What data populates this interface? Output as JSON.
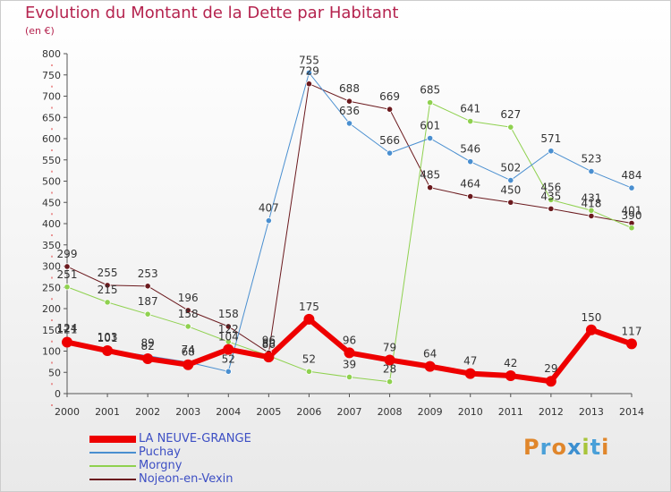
{
  "header": {
    "title": "Evolution du Montant de la Dette par Habitant",
    "unit": "(en €)"
  },
  "logo": {
    "text": "Proxiti",
    "colors": [
      "#e0862b",
      "#4aa0d8",
      "#e0862b",
      "#3c8fd0",
      "#a8c43a",
      "#4aa0d8",
      "#e0862b"
    ]
  },
  "chart_data": {
    "type": "line",
    "title": "Evolution du Montant de la Dette par Habitant",
    "ylabel": "(en €)",
    "xlabel": "",
    "x": [
      "2000",
      "2001",
      "2002",
      "2003",
      "2004",
      "2005",
      "2006",
      "2007",
      "2008",
      "2009",
      "2010",
      "2011",
      "2012",
      "2013",
      "2014"
    ],
    "ylim": [
      0,
      800
    ],
    "yticks": [
      0,
      50,
      100,
      150,
      200,
      250,
      300,
      350,
      400,
      450,
      500,
      550,
      600,
      650,
      700,
      750,
      800
    ],
    "grid": false,
    "legend_position": "bottom-left",
    "series": [
      {
        "name": "Nojeon-en-Vexin",
        "color": "#6b1a1e",
        "width": 1,
        "values": [
          299,
          255,
          253,
          196,
          158,
          96,
          729,
          688,
          669,
          485,
          464,
          450,
          435,
          418,
          401
        ],
        "labels": [
          "299",
          "255",
          "253",
          "196",
          "158",
          "96",
          "729",
          "688",
          "669",
          "485",
          "464",
          "450",
          "435",
          "418",
          "401"
        ]
      },
      {
        "name": "Morgny",
        "color": "#8fd14f",
        "width": 1,
        "values": [
          251,
          215,
          187,
          158,
          122,
          89,
          52,
          39,
          28,
          685,
          641,
          627,
          456,
          431,
          390
        ],
        "labels": [
          "251",
          "215",
          "187",
          "158",
          "122",
          "89",
          "52",
          "39",
          "28",
          "685",
          "641",
          "627",
          "456",
          "431",
          "390"
        ]
      },
      {
        "name": "Puchay",
        "color": "#4a8fd0",
        "width": 1,
        "values": [
          124,
          103,
          89,
          74,
          52,
          407,
          755,
          636,
          566,
          601,
          546,
          502,
          571,
          523,
          484
        ],
        "labels": [
          "124",
          "103",
          "89",
          "74",
          "52",
          "407",
          "755",
          "636",
          "566",
          "601",
          "546",
          "502",
          "571",
          "523",
          "484"
        ]
      },
      {
        "name": "LA NEUVE-GRANGE",
        "color": "#ee0000",
        "width": 6,
        "values": [
          121,
          101,
          82,
          68,
          104,
          86,
          175,
          96,
          79,
          64,
          47,
          42,
          29,
          150,
          117
        ],
        "labels": [
          "121",
          "101",
          "82",
          "68",
          "104",
          "86",
          "175",
          "96",
          "79",
          "64",
          "47",
          "42",
          "29",
          "150",
          "117"
        ]
      }
    ]
  },
  "legend": {
    "items": [
      {
        "name": "LA NEUVE-GRANGE",
        "color": "#ee0000",
        "swatch": 8
      },
      {
        "name": "Puchay",
        "color": "#4a8fd0",
        "swatch": 2
      },
      {
        "name": "Morgny",
        "color": "#8fd14f",
        "swatch": 2
      },
      {
        "name": "Nojeon-en-Vexin",
        "color": "#6b1a1e",
        "swatch": 2
      }
    ]
  }
}
